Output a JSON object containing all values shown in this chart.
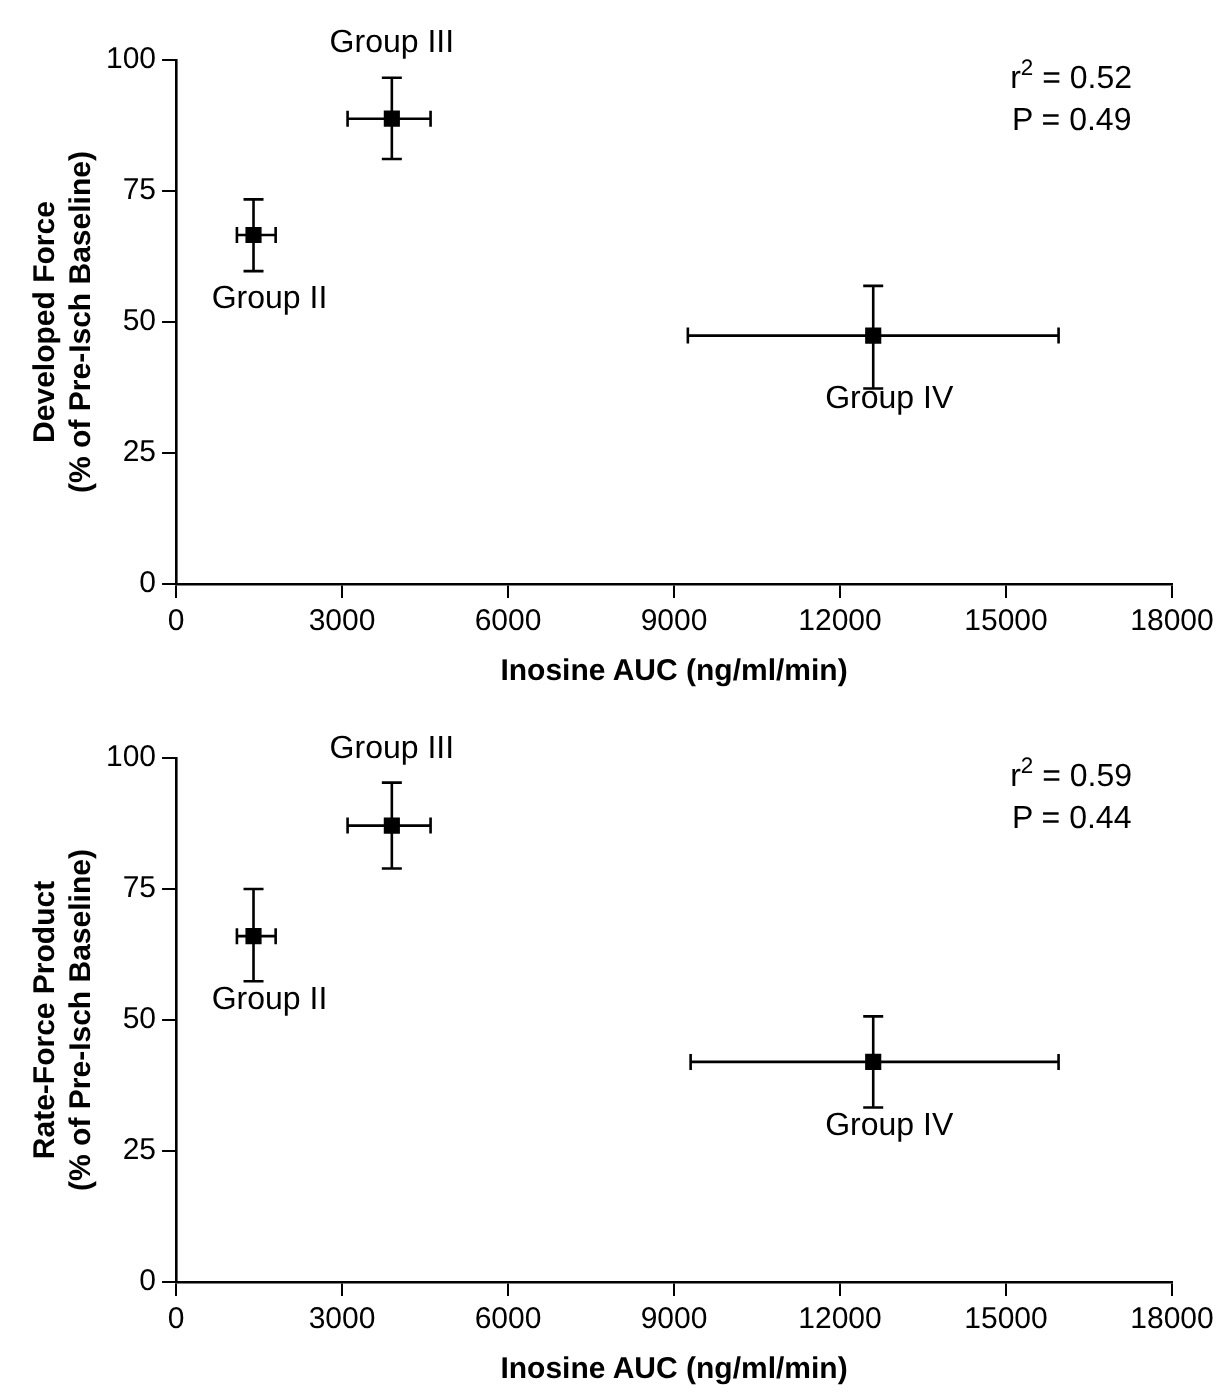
{
  "chart_data": [
    {
      "type": "scatter",
      "xlabel": "Inosine AUC (ng/ml/min)",
      "ylabel": "Developed Force\n(% of Pre-Isch Baseline)",
      "x": [
        1400,
        3900,
        12600
      ],
      "series": [
        {
          "color": "#000000",
          "values": [
            66.6,
            88.8,
            47.4
          ],
          "errors": [
            [
              59.7,
              73.4
            ],
            [
              81.1,
              96.6
            ],
            [
              37.3,
              56.9
            ]
          ],
          "xerrors": [
            [
              1100,
              1800
            ],
            [
              3100,
              4600
            ],
            [
              9250,
              15950
            ]
          ]
        }
      ],
      "xlim": [
        0,
        18000
      ],
      "xticks": [
        0,
        3000,
        6000,
        9000,
        12000,
        15000,
        18000
      ],
      "ylim": [
        0,
        100
      ],
      "yticks": [
        0,
        25,
        50,
        75,
        100
      ],
      "grid": false,
      "legend": false,
      "marker": "square",
      "annotations": [
        {
          "text": "Group II",
          "x": 1400,
          "y": 66.6
        },
        {
          "text": "Group III",
          "x": 3900,
          "y": 88.8
        },
        {
          "text": "Group IV",
          "x": 12600,
          "y": 47.4
        },
        "r$^{2}$ = 0.52",
        "P = 0.49"
      ]
    },
    {
      "type": "scatter",
      "xlabel": "Inosine AUC (ng/ml/min)",
      "ylabel": "Rate-Force Product\n(% of Pre-Isch Baseline)",
      "x": [
        1400,
        3900,
        12600
      ],
      "series": [
        {
          "color": "#000000",
          "values": [
            66.0,
            87.1,
            42.0
          ],
          "errors": [
            [
              57.4,
              75.0
            ],
            [
              78.9,
              95.3
            ],
            [
              33.3,
              50.7
            ]
          ],
          "xerrors": [
            [
              1100,
              1800
            ],
            [
              3100,
              4600
            ],
            [
              9300,
              15950
            ]
          ]
        }
      ],
      "xlim": [
        0,
        18000
      ],
      "xticks": [
        0,
        3000,
        6000,
        9000,
        12000,
        15000,
        18000
      ],
      "ylim": [
        0,
        100
      ],
      "yticks": [
        0,
        25,
        50,
        75,
        100
      ],
      "grid": false,
      "legend": false,
      "marker": "square",
      "annotations": [
        {
          "text": "Group II",
          "x": 1400,
          "y": 66.0
        },
        {
          "text": "Group III",
          "x": 3900,
          "y": 87.1
        },
        {
          "text": "Group IV",
          "x": 12600,
          "y": 42.0
        },
        "r$^{2}$ = 0.59",
        "P = 0.44"
      ]
    }
  ]
}
